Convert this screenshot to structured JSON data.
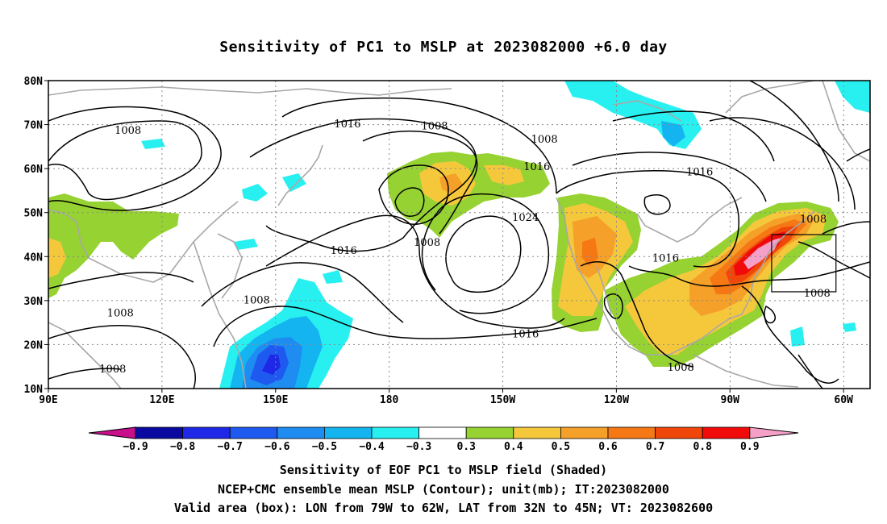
{
  "title": "Sensitivity of PC1 to MSLP at 2023082000 +6.0 day",
  "map": {
    "lat_labels": [
      "80N",
      "70N",
      "60N",
      "50N",
      "40N",
      "30N",
      "20N",
      "10N"
    ],
    "lon_labels": [
      "90E",
      "120E",
      "150E",
      "180",
      "150W",
      "120W",
      "90W",
      "60W"
    ],
    "contour_labels": [
      {
        "text": "1008",
        "lon": 111,
        "lat": 68.3
      },
      {
        "text": "1016",
        "lon": 169,
        "lat": 69.7
      },
      {
        "text": "1008",
        "lon": -168,
        "lat": 69.3
      },
      {
        "text": "1008",
        "lon": -139,
        "lat": 66.3
      },
      {
        "text": "1016",
        "lon": -141,
        "lat": 60.0
      },
      {
        "text": "1016",
        "lon": -98,
        "lat": 58.8
      },
      {
        "text": "1024",
        "lon": -144,
        "lat": 48.5
      },
      {
        "text": "1008",
        "lon": -170,
        "lat": 42.8
      },
      {
        "text": "1016",
        "lon": 168,
        "lat": 41.0
      },
      {
        "text": "1008",
        "lon": -68,
        "lat": 48.1
      },
      {
        "text": "1016",
        "lon": -107,
        "lat": 39.2
      },
      {
        "text": "1008",
        "lon": -67,
        "lat": 31.3
      },
      {
        "text": "1008",
        "lon": 145,
        "lat": 29.7
      },
      {
        "text": "1008",
        "lon": 109,
        "lat": 26.8
      },
      {
        "text": "1016",
        "lon": -144,
        "lat": 22.0
      },
      {
        "text": "1008",
        "lon": -103,
        "lat": 14.4
      },
      {
        "text": "1008",
        "lon": 107,
        "lat": 14.0
      }
    ],
    "valid_box": {
      "lon_from": -79,
      "lon_to": -62,
      "lat_from": 32,
      "lat_to": 45
    }
  },
  "colorbar": {
    "labels": [
      "−0.9",
      "−0.8",
      "−0.7",
      "−0.6",
      "−0.5",
      "−0.4",
      "−0.3",
      "0.3",
      "0.4",
      "0.5",
      "0.6",
      "0.7",
      "0.8",
      "0.9"
    ],
    "left_arrow_color": "#c8108c",
    "right_arrow_color": "#f4a0c8",
    "colors": [
      "#0a0aa0",
      "#1e28e6",
      "#1e5af0",
      "#1e8cf0",
      "#14b4f0",
      "#28f0f0",
      "#ffffff",
      "#96d232",
      "#f5c83c",
      "#f5a028",
      "#f57814",
      "#f0460a",
      "#f00a0a"
    ]
  },
  "caption": {
    "line1": "Sensitivity of EOF PC1 to MSLP field (Shaded)",
    "line2": "NCEP+CMC ensemble mean MSLP (Contour); unit(mb); IT:2023082000",
    "line3": "Valid area (box): LON from 79W to 62W, LAT from 32N to 45N; VT: 2023082600"
  },
  "chart_data": {
    "type": "heatmap",
    "title": "Sensitivity of PC1 to MSLP at 2023082000 +6.0 day",
    "x_range_lon_east": [
      90,
      307
    ],
    "y_range_lat": [
      10,
      80
    ],
    "shading_levels": [
      -0.9,
      -0.8,
      -0.7,
      -0.6,
      -0.5,
      -0.4,
      -0.3,
      0.3,
      0.4,
      0.5,
      0.6,
      0.7,
      0.8,
      0.9
    ],
    "contour_levels_mb": [
      1008,
      1016,
      1024
    ],
    "grid": true
  }
}
